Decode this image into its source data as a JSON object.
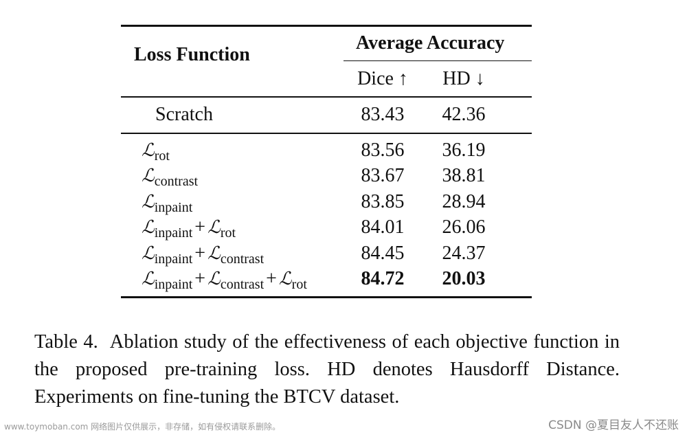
{
  "table": {
    "header": {
      "loss_function": "Loss Function",
      "average_accuracy": "Average Accuracy",
      "dice": "Dice ↑",
      "hd": "HD ↓"
    },
    "scratch": {
      "label": "Scratch",
      "dice": "83.43",
      "hd": "42.36"
    },
    "rows": [
      {
        "terms": [
          "rot"
        ],
        "dice": "83.56",
        "hd": "36.19",
        "bold": false
      },
      {
        "terms": [
          "contrast"
        ],
        "dice": "83.67",
        "hd": "38.81",
        "bold": false
      },
      {
        "terms": [
          "inpaint"
        ],
        "dice": "83.85",
        "hd": "28.94",
        "bold": false
      },
      {
        "terms": [
          "inpaint",
          "rot"
        ],
        "dice": "84.01",
        "hd": "26.06",
        "bold": false
      },
      {
        "terms": [
          "inpaint",
          "contrast"
        ],
        "dice": "84.45",
        "hd": "24.37",
        "bold": false
      },
      {
        "terms": [
          "inpaint",
          "contrast",
          "rot"
        ],
        "dice": "84.72",
        "hd": "20.03",
        "bold": true
      }
    ],
    "loss_symbol": "ℒ",
    "plus_symbol": "+"
  },
  "caption": {
    "label": "Table 4.",
    "text": "Ablation study of the effectiveness of each objective function in the proposed pre-training loss. HD denotes Hausdorff Distance. Experiments on fine-tuning the BTCV dataset."
  },
  "watermark": {
    "left": "www.toymoban.com 网络图片仅供展示，非存储，如有侵权请联系删除。",
    "right": "CSDN @夏目友人不还账"
  }
}
